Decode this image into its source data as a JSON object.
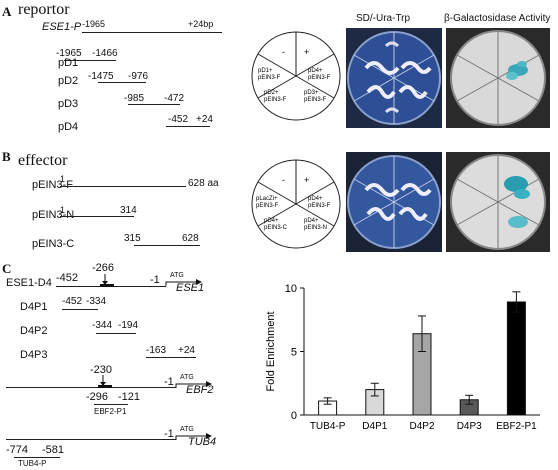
{
  "panelA": {
    "letter": "A",
    "title": "reportor",
    "constructs": [
      {
        "name": "ESE1-P",
        "start": "-1965",
        "end": "+24bp"
      },
      {
        "name": "pD1",
        "start": "-1965",
        "end": "-1466"
      },
      {
        "name": "pD2",
        "start": "-1475",
        "end": "-976"
      },
      {
        "name": "pD3",
        "start": "-985",
        "end": "-472"
      },
      {
        "name": "pD4",
        "start": "-452",
        "end": "+24"
      }
    ],
    "plate_diagram": {
      "minus": "-",
      "plus": "+",
      "sectors": [
        "pD1+\npEIN3-F",
        "pD4+\npEIN3-F",
        "pD2+\npEIN3-F",
        "pD3+\npEIN3-F"
      ]
    },
    "header_sd": "SD/-Ura-Trp",
    "header_gal": "β-Galactosidase Activity"
  },
  "panelB": {
    "letter": "B",
    "title": "effector",
    "constructs": [
      {
        "name": "pEIN3-F",
        "start": "1",
        "end": "628 aa"
      },
      {
        "name": "pEIN3-N",
        "start": "1",
        "end": "314"
      },
      {
        "name": "pEIN3-C",
        "start": "315",
        "end": "628"
      }
    ],
    "plate_diagram": {
      "minus": "-",
      "plus": "+",
      "sectors": [
        "pLacZi+\npEIN3-F",
        "pD4+\npEIN3-F",
        "pD4+\npEIN3-C",
        "pD4+\npEIN3-N"
      ]
    }
  },
  "panelC": {
    "letter": "C",
    "ese1": {
      "name": "ESE1-D4",
      "start": "-452",
      "box": "-266",
      "end": "-1",
      "atg": "ATG",
      "gene": "ESE1"
    },
    "probes": [
      {
        "name": "D4P1",
        "start": "-452",
        "end": "-334"
      },
      {
        "name": "D4P2",
        "start": "-344",
        "end": "-194"
      },
      {
        "name": "D4P3",
        "start": "-163",
        "end": "+24"
      }
    ],
    "ebf2": {
      "box": "-230",
      "end": "-1",
      "atg": "ATG",
      "gene": "EBF2",
      "probe_start": "-296",
      "probe_end": "-121",
      "probe_name": "EBF2-P1"
    },
    "tub4": {
      "end": "-1",
      "atg": "ATG",
      "gene": "TUB4",
      "probe_start": "-774",
      "probe_end": "-581",
      "probe_name": "TUB4-P"
    }
  },
  "chart_data": {
    "type": "bar",
    "categories": [
      "TUB4-P",
      "D4P1",
      "D4P2",
      "D4P3",
      "EBF2-P1"
    ],
    "values": [
      1.1,
      2.0,
      6.4,
      1.2,
      8.9
    ],
    "errors": [
      0.25,
      0.5,
      1.4,
      0.35,
      0.8
    ],
    "colors": [
      "#ffffff",
      "#d9d9d9",
      "#a6a6a6",
      "#595959",
      "#000000"
    ],
    "ylabel": "Fold Enrichment",
    "xlabel": "",
    "ylim": [
      0,
      10
    ],
    "yticks": [
      0,
      5,
      10
    ],
    "grid": false
  }
}
